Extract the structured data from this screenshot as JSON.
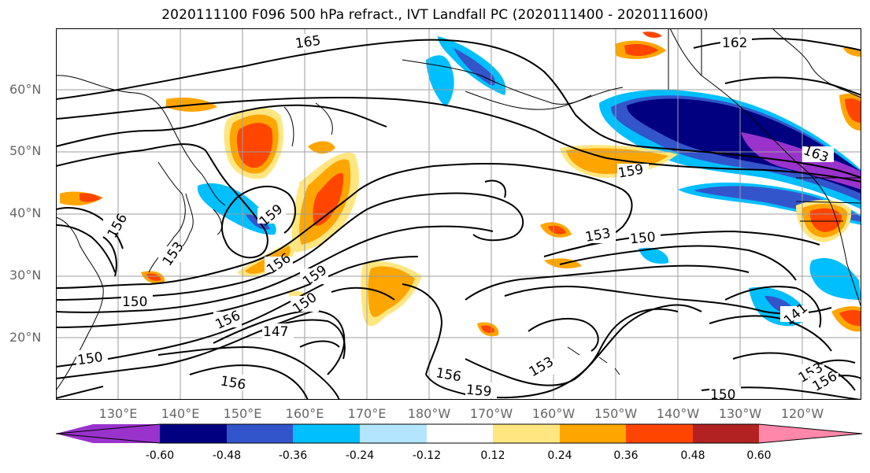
{
  "title": "2020111100 F096 500 hPa refract., IVT Landfall PC (2020111400 - 2020111600)",
  "lat_labels": [
    "60°N",
    "50°N",
    "40°N",
    "30°N",
    "20°N"
  ],
  "lon_labels": [
    "130°E",
    "140°E",
    "150°E",
    "160°E",
    "170°E",
    "180°W",
    "170°W",
    "160°W",
    "150°W",
    "140°W",
    "130°W",
    "120°W"
  ],
  "contour_labels": [
    "165",
    "162",
    "163",
    "159",
    "159",
    "153",
    "150",
    "156",
    "153",
    "159",
    "156",
    "150",
    "150",
    "156",
    "147",
    "150",
    "156",
    "153",
    "156",
    "159",
    "150",
    "141",
    "153",
    "156"
  ],
  "colorbar": {
    "ticks": [
      "-0.60",
      "-0.48",
      "-0.36",
      "-0.24",
      "-0.12",
      "0.12",
      "0.24",
      "0.36",
      "0.48",
      "0.60"
    ],
    "colors": [
      "#9933cc",
      "#000080",
      "#3355cc",
      "#00bfff",
      "#b3e5ff",
      "#ffffff",
      "#ffe680",
      "#ffa500",
      "#ff4500",
      "#b22222",
      "#ff88aa"
    ]
  },
  "fill_colors": {
    "neg_strong": "#000080",
    "neg_purple": "#9933cc",
    "neg_mid": "#3355cc",
    "neg_light": "#00bfff",
    "neg_pale": "#b3e5ff",
    "pos_pale": "#ffe680",
    "pos_light": "#ffa500",
    "pos_mid": "#ff4500",
    "pos_strong": "#b22222"
  }
}
